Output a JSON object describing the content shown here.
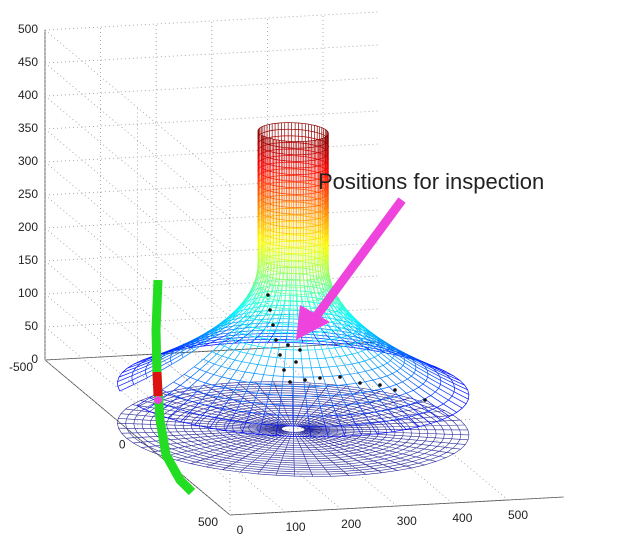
{
  "chart_data": {
    "type": "mesh3d",
    "annotation": "Positions for inspection",
    "xlim": [
      0,
      600
    ],
    "ylim": [
      -500,
      500
    ],
    "zlim": [
      0,
      500
    ],
    "xticks": [
      0,
      100,
      200,
      300,
      400,
      500
    ],
    "yticks": [
      -500,
      0,
      500
    ],
    "zticks": [
      0,
      50,
      100,
      150,
      200,
      250,
      300,
      350,
      400,
      450,
      500
    ],
    "grid": true
  }
}
